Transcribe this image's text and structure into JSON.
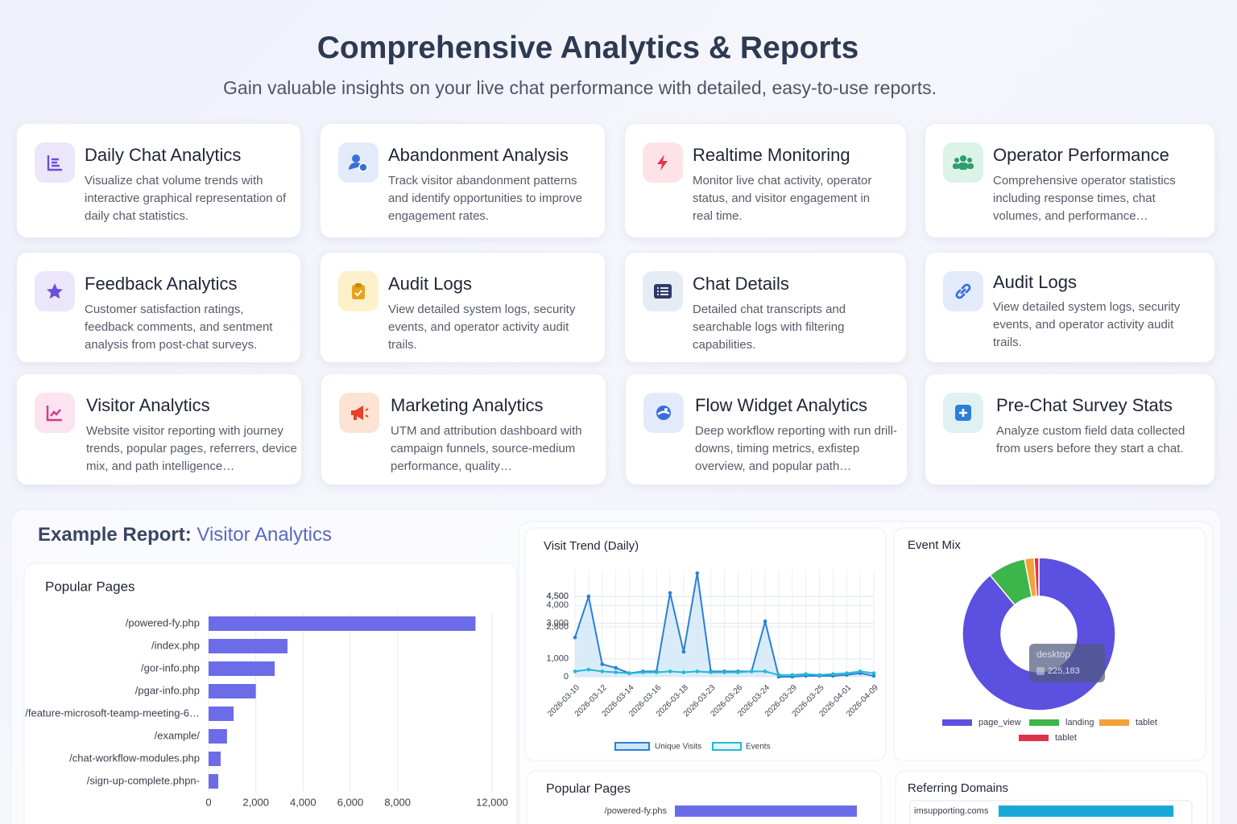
{
  "header": {
    "title": "Comprehensive Analytics & Reports",
    "subtitle": "Gain valuable insights on your live chat performance with detailed, easy-to-use reports."
  },
  "cards": [
    {
      "title": "Daily Chat Analytics",
      "description": "Visualize chat volume trends with interactive graphical representation of daily chat statistics."
    },
    {
      "title": "Abandonment Analysis",
      "description": "Track visitor abandonment patterns and identify opportunities to improve engagement rates."
    },
    {
      "title": "Realtime Monitoring",
      "description": "Monitor live chat activity, operator status, and visitor engagement in real time."
    },
    {
      "title": "Operator Performance",
      "description": "Comprehensive operator statistics including response times, chat volumes, and performance…"
    },
    {
      "title": "Feedback Analytics",
      "description": "Customer satisfaction ratings, feedback comments, and sentment analysis from post-chat surveys."
    },
    {
      "title": "Audit Logs",
      "description": "View detailed system logs, security events, and operator activity audit trails."
    },
    {
      "title": "Chat Details",
      "description": "Detailed chat transcripts and searchable logs with filtering capabilities."
    },
    {
      "title": "Audit Logs",
      "description": "View detailed system logs, security events, and operator activity audit trails."
    },
    {
      "title": "Visitor Analytics",
      "description": "Website visitor reporting with journey trends, popular pages, referrers, device mix, and path intelligence…"
    },
    {
      "title": "Marketing Analytics",
      "description": "UTM and attribution dashboard with campaign funnels, source-medium performance, quality…"
    },
    {
      "title": "Flow Widget Analytics",
      "description": "Deep workflow reporting with run drill-downs, timing metrics, exfistep overview, and popular path…"
    },
    {
      "title": "Pre-Chat Survey Stats",
      "description": "Analyze custom field data collected from users before they start a chat."
    }
  ],
  "report": {
    "label": "Example Report:",
    "name": "Visitor Analytics"
  },
  "chart_data": [
    {
      "type": "bar",
      "title": "Popular Pages",
      "categories": [
        "/powered-fy.php",
        "/index.php",
        "/gor-info.php",
        "/pgar-info.php",
        "/feature-microsoft-teamp-meeting-6…",
        "/example/",
        "/chat-workflow-modules.php",
        "/sign-up-complete.phpn-"
      ],
      "values": [
        11300,
        3340,
        2800,
        2000,
        1060,
        780,
        510,
        410
      ],
      "color": "#6c6ce8",
      "xlim": [
        0,
        12000
      ],
      "xticks": [
        0,
        {
          "value": 2000,
          "label": "2,000"
        },
        {
          "value": 4000,
          "label": "4,000"
        },
        {
          "value": 6000,
          "label": "6,000"
        },
        {
          "value": 8000,
          "label": "8,000"
        },
        {
          "value": 12000,
          "label": "12,000"
        }
      ],
      "grid": true
    },
    {
      "type": "line",
      "title": "Visit Trend (Daily)",
      "categories": [
        "2026-03-10",
        null,
        "2026-03-12",
        null,
        "2026-03-14",
        null,
        "2026-03-16",
        null,
        "2026-03-18",
        null,
        "2026-03-23",
        null,
        "2026-03-26",
        null,
        "2026-03-24",
        null,
        "2026-03-29",
        null,
        "2026-03-25",
        null,
        "2026-04-01",
        null,
        "2026-04-09"
      ],
      "series": [
        {
          "name": "Unique Visits",
          "color": "#2a7fd6",
          "fill": "#cfe6f7",
          "values": [
            2200,
            4500,
            700,
            500,
            200,
            300,
            300,
            4700,
            1400,
            5800,
            300,
            300,
            300,
            300,
            3100,
            0,
            0,
            50,
            50,
            50,
            100,
            200,
            50
          ]
        },
        {
          "name": "Events",
          "color": "#22b8d8",
          "values": [
            300,
            400,
            300,
            250,
            200,
            250,
            250,
            300,
            250,
            300,
            250,
            250,
            250,
            300,
            300,
            100,
            100,
            150,
            100,
            150,
            200,
            300,
            200
          ]
        }
      ],
      "ylim": [
        0,
        6000
      ],
      "yticks": [
        0,
        {
          "value": 1000,
          "label": "1,000"
        },
        {
          "value": 2800,
          "label": "2,800"
        },
        {
          "value": 3000,
          "label": "3,000"
        },
        {
          "value": 4500,
          "label": "4,500"
        },
        {
          "value": 4000,
          "label": "4,000"
        },
        {
          "value": 4500,
          "label": "4,500"
        }
      ],
      "grid": true
    },
    {
      "type": "pie",
      "title": "Event Mix",
      "categories": [
        "page_view",
        "landing",
        "tablet",
        "tablet"
      ],
      "values": [
        89,
        8,
        2,
        1
      ],
      "colors": [
        "#5b50e0",
        "#3cb54a",
        "#f4a13a",
        "#e0334a"
      ],
      "tooltip": {
        "label": "desktop",
        "value": "225,183"
      }
    },
    {
      "type": "bar",
      "title": "Popular Pages",
      "categories": [
        "/powered-fy.phs"
      ],
      "values": [
        11300
      ],
      "color": "#6c6ce8",
      "xlim": [
        0,
        12000
      ]
    },
    {
      "type": "bar",
      "title": "Referring Domains",
      "categories": [
        "imsupporting.coms"
      ],
      "values": [
        92
      ],
      "color": "#1aa8d8",
      "xlim": [
        0,
        100
      ]
    }
  ]
}
